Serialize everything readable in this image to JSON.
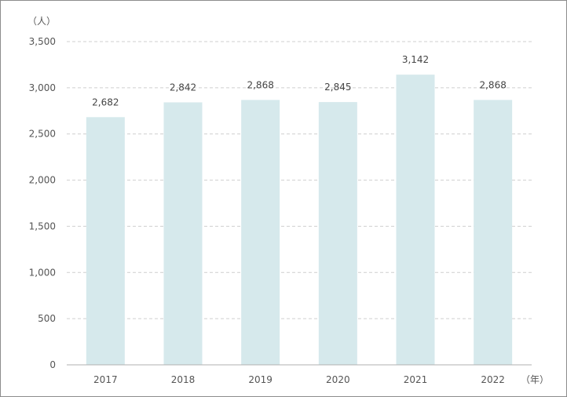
{
  "chart_data": {
    "type": "bar",
    "categories": [
      "2017",
      "2018",
      "2019",
      "2020",
      "2021",
      "2022"
    ],
    "values": [
      2682,
      2842,
      2868,
      2845,
      3142,
      2868
    ],
    "value_labels": [
      "2,682",
      "2,842",
      "2,868",
      "2,845",
      "3,142",
      "2,868"
    ],
    "y_unit_label": "（人）",
    "x_unit_label": "（年）",
    "ylim": [
      0,
      3500
    ],
    "yticks": [
      0,
      500,
      1000,
      1500,
      2000,
      2500,
      3000,
      3500
    ],
    "ytick_labels": [
      "0",
      "500",
      "1,000",
      "1,500",
      "2,000",
      "2,500",
      "3,000",
      "3,500"
    ],
    "grid": true,
    "bar_color": "#d6e9ec",
    "legend": "none"
  }
}
